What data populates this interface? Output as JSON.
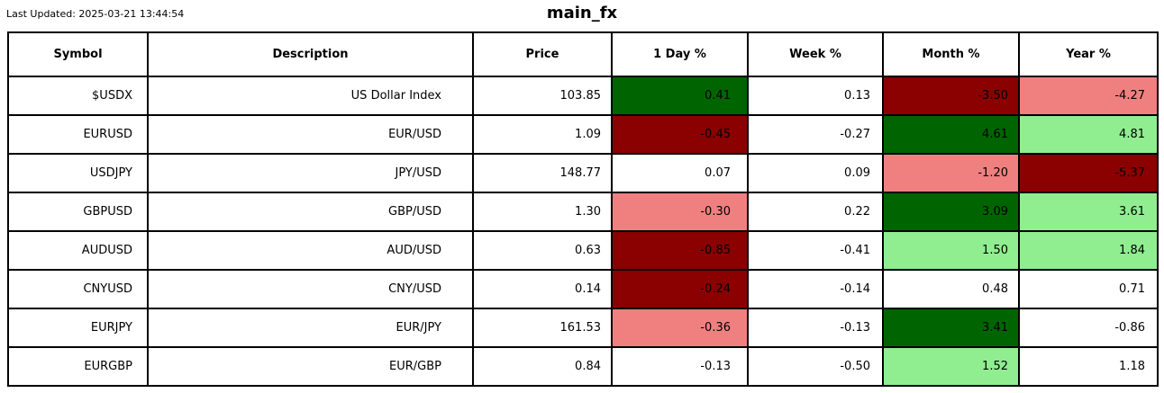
{
  "header": {
    "last_updated": "Last Updated: 2025-03-21 13:44:54",
    "title": "main_fx"
  },
  "colors": {
    "strong_up": "#006400",
    "up": "#90EE90",
    "down": "#F08080",
    "strong_down": "#8B0000",
    "neutral": "#FFFFFF",
    "border": "#000000",
    "text": "#000000"
  },
  "chart_data": {
    "type": "table",
    "title": "main_fx",
    "columns": [
      "Symbol",
      "Description",
      "Price",
      "1 Day %",
      "Week %",
      "Month %",
      "Year %"
    ],
    "rows": [
      {
        "symbol": "$USDX",
        "description": "US Dollar Index",
        "price": "103.85",
        "day_pct": "0.41",
        "week_pct": "0.13",
        "month_pct": "-3.50",
        "year_pct": "-4.27",
        "fills": {
          "day_pct": "strong_up",
          "week_pct": "neutral",
          "month_pct": "strong_down",
          "year_pct": "down"
        }
      },
      {
        "symbol": "EURUSD",
        "description": "EUR/USD",
        "price": "1.09",
        "day_pct": "-0.45",
        "week_pct": "-0.27",
        "month_pct": "4.61",
        "year_pct": "4.81",
        "fills": {
          "day_pct": "strong_down",
          "week_pct": "neutral",
          "month_pct": "strong_up",
          "year_pct": "up"
        }
      },
      {
        "symbol": "USDJPY",
        "description": "JPY/USD",
        "price": "148.77",
        "day_pct": "0.07",
        "week_pct": "0.09",
        "month_pct": "-1.20",
        "year_pct": "-5.37",
        "fills": {
          "day_pct": "neutral",
          "week_pct": "neutral",
          "month_pct": "down",
          "year_pct": "strong_down"
        }
      },
      {
        "symbol": "GBPUSD",
        "description": "GBP/USD",
        "price": "1.30",
        "day_pct": "-0.30",
        "week_pct": "0.22",
        "month_pct": "3.09",
        "year_pct": "3.61",
        "fills": {
          "day_pct": "down",
          "week_pct": "neutral",
          "month_pct": "strong_up",
          "year_pct": "up"
        }
      },
      {
        "symbol": "AUDUSD",
        "description": "AUD/USD",
        "price": "0.63",
        "day_pct": "-0.85",
        "week_pct": "-0.41",
        "month_pct": "1.50",
        "year_pct": "1.84",
        "fills": {
          "day_pct": "strong_down",
          "week_pct": "neutral",
          "month_pct": "up",
          "year_pct": "up"
        }
      },
      {
        "symbol": "CNYUSD",
        "description": "CNY/USD",
        "price": "0.14",
        "day_pct": "-0.24",
        "week_pct": "-0.14",
        "month_pct": "0.48",
        "year_pct": "0.71",
        "fills": {
          "day_pct": "strong_down",
          "week_pct": "neutral",
          "month_pct": "neutral",
          "year_pct": "neutral"
        }
      },
      {
        "symbol": "EURJPY",
        "description": "EUR/JPY",
        "price": "161.53",
        "day_pct": "-0.36",
        "week_pct": "-0.13",
        "month_pct": "3.41",
        "year_pct": "-0.86",
        "fills": {
          "day_pct": "down",
          "week_pct": "neutral",
          "month_pct": "strong_up",
          "year_pct": "neutral"
        }
      },
      {
        "symbol": "EURGBP",
        "description": "EUR/GBP",
        "price": "0.84",
        "day_pct": "-0.13",
        "week_pct": "-0.50",
        "month_pct": "1.52",
        "year_pct": "1.18",
        "fills": {
          "day_pct": "neutral",
          "week_pct": "neutral",
          "month_pct": "up",
          "year_pct": "neutral"
        }
      }
    ]
  }
}
